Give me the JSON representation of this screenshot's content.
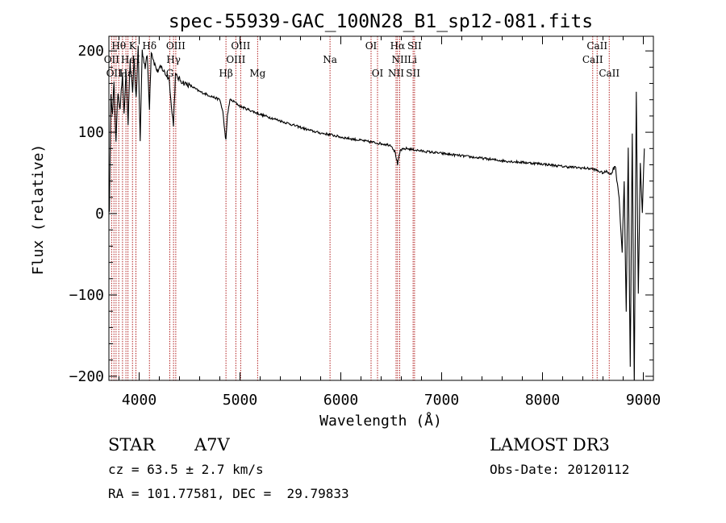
{
  "chart_data": {
    "type": "line",
    "title": "spec-55939-GAC_100N28_B1_sp12-081.fits",
    "xlabel": "Wavelength (Å)",
    "ylabel": "Flux (relative)",
    "xlim": [
      3700,
      9100
    ],
    "ylim": [
      -205,
      218
    ],
    "x_ticks": [
      4000,
      5000,
      6000,
      7000,
      8000,
      9000
    ],
    "x_tick_labels": [
      "4000",
      "5000",
      "6000",
      "7000",
      "8000",
      "9000"
    ],
    "y_ticks": [
      -200,
      -100,
      0,
      100,
      200
    ],
    "y_tick_labels": [
      "−200",
      "−100",
      "0",
      "100",
      "200"
    ],
    "grid": false,
    "series": [
      {
        "name": "spectrum",
        "x": [
          3705,
          3720,
          3735,
          3750,
          3770,
          3790,
          3810,
          3835,
          3850,
          3870,
          3890,
          3910,
          3935,
          3950,
          3970,
          3990,
          4010,
          4030,
          4060,
          4080,
          4102,
          4120,
          4150,
          4180,
          4220,
          4260,
          4300,
          4320,
          4340,
          4360,
          4400,
          4450,
          4500,
          4600,
          4700,
          4800,
          4830,
          4850,
          4861,
          4875,
          4900,
          4950,
          5000,
          5100,
          5200,
          5300,
          5400,
          5500,
          5600,
          5700,
          5800,
          5900,
          6000,
          6100,
          6200,
          6300,
          6400,
          6500,
          6540,
          6563,
          6590,
          6650,
          6700,
          6800,
          7000,
          7200,
          7400,
          7600,
          7800,
          8000,
          8200,
          8400,
          8500,
          8560,
          8600,
          8640,
          8680,
          8720,
          8760,
          8790,
          8810,
          8830,
          8850,
          8870,
          8890,
          8910,
          8930,
          8950,
          8970,
          8990,
          9010
        ],
        "values": [
          5,
          150,
          120,
          160,
          90,
          150,
          130,
          170,
          120,
          175,
          110,
          185,
          150,
          190,
          140,
          205,
          90,
          200,
          180,
          195,
          130,
          200,
          185,
          175,
          180,
          172,
          165,
          130,
          110,
          170,
          165,
          160,
          158,
          150,
          145,
          140,
          125,
          100,
          90,
          120,
          140,
          137,
          132,
          127,
          122,
          118,
          114,
          110,
          106,
          102,
          99,
          97,
          94,
          92,
          90,
          88,
          86,
          84,
          75,
          60,
          78,
          80,
          79,
          77,
          74,
          71,
          68,
          65,
          63,
          61,
          58,
          56,
          55,
          52,
          50,
          52,
          48,
          60,
          20,
          -50,
          40,
          -120,
          80,
          -190,
          100,
          -210,
          150,
          -100,
          60,
          0,
          80
        ]
      }
    ],
    "annotations": {
      "vlines": [
        3727,
        3750,
        3771,
        3798,
        3835,
        3869,
        3889,
        3934,
        3968,
        4102,
        4304,
        4341,
        4363,
        4861,
        4959,
        5007,
        5175,
        5893,
        6300,
        6364,
        6548,
        6563,
        6584,
        6717,
        6731,
        8498,
        8542,
        8662
      ],
      "line_labels": [
        {
          "text": "Hθ",
          "x": 3798,
          "row": 1
        },
        {
          "text": "K",
          "x": 3934,
          "row": 1
        },
        {
          "text": "Hδ",
          "x": 4102,
          "row": 1
        },
        {
          "text": "OIII",
          "x": 4363,
          "row": 1
        },
        {
          "text": "OIII",
          "x": 5007,
          "row": 1
        },
        {
          "text": "OI",
          "x": 6300,
          "row": 1
        },
        {
          "text": "Hα",
          "x": 6563,
          "row": 1
        },
        {
          "text": "SII",
          "x": 6731,
          "row": 1
        },
        {
          "text": "CaII",
          "x": 8542,
          "row": 1
        },
        {
          "text": "OII",
          "x": 3727,
          "row": 2
        },
        {
          "text": "He",
          "x": 3889,
          "row": 2
        },
        {
          "text": "H",
          "x": 3968,
          "row": 2
        },
        {
          "text": "Hγ",
          "x": 4341,
          "row": 2
        },
        {
          "text": "OIII",
          "x": 4959,
          "row": 2
        },
        {
          "text": "Na",
          "x": 5893,
          "row": 2
        },
        {
          "text": "NII",
          "x": 6584,
          "row": 2
        },
        {
          "text": "Li",
          "x": 6708,
          "row": 2
        },
        {
          "text": "CaII",
          "x": 8498,
          "row": 2
        },
        {
          "text": "OII",
          "x": 3750,
          "row": 3
        },
        {
          "text": "Hε",
          "x": 3869,
          "row": 3
        },
        {
          "text": "G",
          "x": 4304,
          "row": 3
        },
        {
          "text": "Hβ",
          "x": 4861,
          "row": 3
        },
        {
          "text": "Mg",
          "x": 5175,
          "row": 3
        },
        {
          "text": "OI",
          "x": 6364,
          "row": 3
        },
        {
          "text": "NII",
          "x": 6548,
          "row": 3
        },
        {
          "text": "SII",
          "x": 6717,
          "row": 3
        },
        {
          "text": "CaII",
          "x": 8662,
          "row": 3
        }
      ]
    }
  },
  "info": {
    "class_label": "STAR",
    "subclass": "A7V",
    "survey": "LAMOST DR3",
    "cz_text": "cz = 63.5 ± 2.7 km/s",
    "obs_date_text": "Obs-Date: 20120112",
    "radec_text": "RA = 101.77581, DEC =  29.79833"
  },
  "colors": {
    "spectrum": "#000000",
    "line_marker": "#b22222",
    "axis": "#000000"
  }
}
